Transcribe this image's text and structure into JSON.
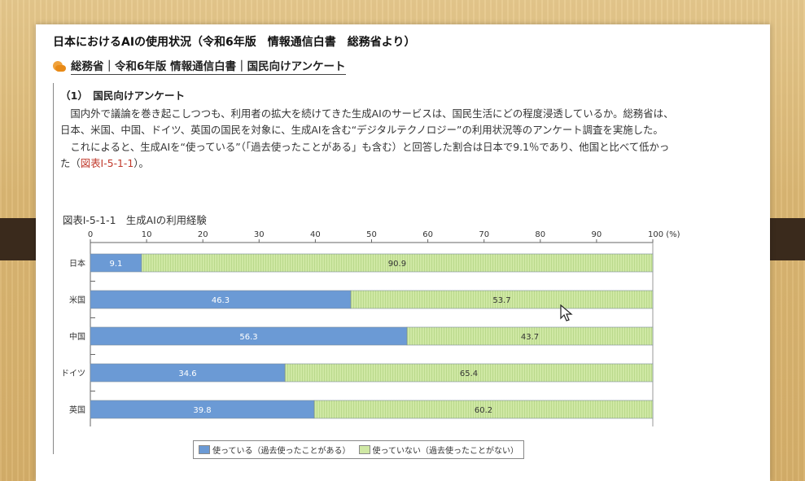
{
  "header": {
    "title": "日本におけるAIの使用状況（令和6年版　情報通信白書　総務省より）",
    "breadcrumb": "総務省｜令和6年版 情報通信白書｜国民向けアンケート"
  },
  "article": {
    "heading": "（1）　国民向けアンケート",
    "para1": "国内外で議論を巻き起こしつつも、利用者の拡大を続けてきた生成AIのサービスは、国民生活にどの程度浸透しているか。総務省は、日本、米国、中国、ドイツ、英国の国民を対象に、生成AIを含む“デジタルテクノロジー”の利用状況等のアンケート調査を実施した。",
    "para2_a": "これによると、生成AIを“使っている”（「過去使ったことがある」も含む）と回答した割合は日本で9.1％であり、他国と比べて低かった（",
    "para2_link": "図表Ⅰ-5-1-1",
    "para2_b": "）。"
  },
  "figure": {
    "title": "図表Ⅰ-5-1-1　生成AIの利用経験"
  },
  "chart_data": {
    "type": "bar",
    "orientation": "horizontal",
    "stacked": true,
    "categories": [
      "日本",
      "米国",
      "中国",
      "ドイツ",
      "英国"
    ],
    "series": [
      {
        "name": "使っている（過去使ったことがある）",
        "values": [
          9.1,
          46.3,
          56.3,
          34.6,
          39.8
        ],
        "color": "#6b9ad5"
      },
      {
        "name": "使っていない（過去使ったことがない）",
        "values": [
          90.9,
          53.7,
          43.7,
          65.4,
          60.2
        ],
        "color": "#cfe8a4"
      }
    ],
    "x_ticks": [
      "0",
      "10",
      "20",
      "30",
      "40",
      "50",
      "60",
      "70",
      "80",
      "90",
      "100 (%)"
    ],
    "xlim": [
      0,
      100
    ],
    "legend_position": "bottom"
  },
  "colors": {
    "used": "#6b9ad5",
    "unused": "#cfe8a4",
    "link": "#c0392b"
  }
}
